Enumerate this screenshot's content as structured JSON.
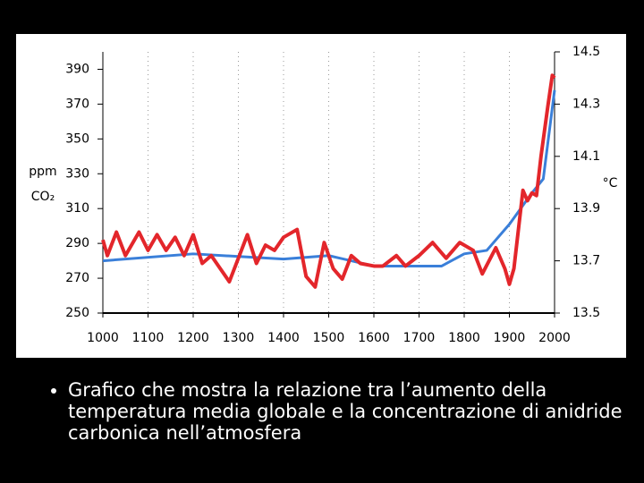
{
  "chart_data": {
    "type": "line",
    "ylabel": "ppm",
    "ylabel2": "CO₂",
    "y2label": "°C",
    "xlim": [
      1000,
      2000
    ],
    "xticks": [
      1000,
      1100,
      1200,
      1300,
      1400,
      1500,
      1600,
      1700,
      1800,
      1900,
      2000
    ],
    "ylim": [
      250,
      400
    ],
    "yticks": [
      250,
      270,
      290,
      310,
      330,
      350,
      370,
      390
    ],
    "y2lim": [
      13.5,
      14.5
    ],
    "y2ticks": [
      13.5,
      13.7,
      13.9,
      14.1,
      14.3,
      14.5
    ],
    "grid": true,
    "series": [
      {
        "color": "#3a7fd9",
        "axis": "y",
        "x": [
          1000,
          1200,
          1400,
          1500,
          1600,
          1750,
          1800,
          1850,
          1900,
          1950,
          1975,
          2000
        ],
        "values": [
          280,
          284,
          281,
          283,
          277,
          277,
          284,
          286,
          301,
          319,
          327,
          378
        ]
      },
      {
        "color": "#e3262b",
        "axis": "y2",
        "x": [
          1000,
          1010,
          1030,
          1050,
          1080,
          1100,
          1120,
          1140,
          1160,
          1180,
          1200,
          1220,
          1240,
          1260,
          1280,
          1300,
          1320,
          1340,
          1360,
          1380,
          1400,
          1430,
          1450,
          1470,
          1490,
          1510,
          1530,
          1550,
          1570,
          1600,
          1620,
          1650,
          1670,
          1700,
          1730,
          1760,
          1790,
          1820,
          1840,
          1870,
          1890,
          1900,
          1910,
          1930,
          1940,
          1950,
          1960,
          1970,
          1985,
          1995,
          2000
        ],
        "values": [
          13.78,
          13.72,
          13.81,
          13.72,
          13.81,
          13.74,
          13.8,
          13.74,
          13.79,
          13.72,
          13.8,
          13.69,
          13.72,
          13.67,
          13.62,
          13.71,
          13.8,
          13.69,
          13.76,
          13.74,
          13.79,
          13.82,
          13.64,
          13.6,
          13.77,
          13.67,
          13.63,
          13.72,
          13.69,
          13.68,
          13.68,
          13.72,
          13.68,
          13.72,
          13.77,
          13.71,
          13.77,
          13.74,
          13.65,
          13.75,
          13.67,
          13.61,
          13.67,
          13.97,
          13.93,
          13.96,
          13.95,
          14.1,
          14.29,
          14.41,
          14.4
        ]
      }
    ]
  },
  "caption": "Grafico che mostra la relazione tra l’aumento della temperatura media globale e la concentrazione di anidride carbonica nell’atmosfera"
}
